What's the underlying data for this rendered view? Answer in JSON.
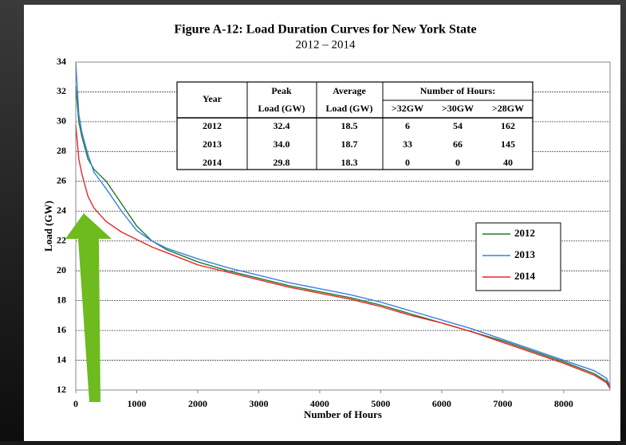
{
  "chart_data": {
    "type": "line",
    "title": "Figure A-12: Load Duration Curves for New York State",
    "subtitle": "2012 – 2014",
    "x_label": "Number of Hours",
    "y_label": "Load (GW)",
    "x": [
      0,
      50,
      100,
      200,
      300,
      500,
      750,
      1000,
      1250,
      1500,
      2000,
      2500,
      3000,
      3500,
      4000,
      4500,
      5000,
      5500,
      6000,
      6500,
      7000,
      7500,
      8000,
      8500,
      8700,
      8760
    ],
    "series": [
      {
        "name": "2012",
        "color": "#1e7a2a",
        "values": [
          32.4,
          30.0,
          29.0,
          27.5,
          26.8,
          26.0,
          24.5,
          23.0,
          22.0,
          21.4,
          20.6,
          20.0,
          19.5,
          19.0,
          18.6,
          18.2,
          17.7,
          17.1,
          16.5,
          15.9,
          15.3,
          14.6,
          13.9,
          13.1,
          12.6,
          12.2
        ]
      },
      {
        "name": "2013",
        "color": "#3a7ee8",
        "values": [
          34.0,
          30.5,
          29.3,
          27.8,
          26.6,
          25.5,
          24.0,
          22.7,
          22.0,
          21.5,
          20.8,
          20.2,
          19.7,
          19.2,
          18.8,
          18.4,
          17.9,
          17.3,
          16.7,
          16.1,
          15.4,
          14.7,
          14.0,
          13.3,
          12.8,
          12.3
        ]
      },
      {
        "name": "2014",
        "color": "#e8252a",
        "values": [
          29.8,
          27.5,
          26.5,
          25.0,
          24.2,
          23.3,
          22.6,
          22.1,
          21.6,
          21.2,
          20.4,
          19.9,
          19.4,
          18.9,
          18.5,
          18.1,
          17.6,
          17.0,
          16.5,
          15.9,
          15.2,
          14.5,
          13.8,
          13.0,
          12.5,
          12.1
        ]
      }
    ],
    "xlim": [
      0,
      8760
    ],
    "xticks": [
      0,
      1000,
      2000,
      3000,
      4000,
      5000,
      6000,
      7000,
      8000
    ],
    "ylim": [
      12,
      34
    ],
    "yticks": [
      12,
      14,
      16,
      18,
      20,
      22,
      24,
      26,
      28,
      30,
      32,
      34
    ],
    "grid": true,
    "legend": "right",
    "table": {
      "header_top": [
        "Year",
        "Peak",
        "Average",
        "Number of Hours:"
      ],
      "header_bottom": [
        "Load (GW)",
        "Load (GW)",
        ">32GW",
        ">30GW",
        ">28GW"
      ],
      "rows": [
        [
          "2012",
          "32.4",
          "18.5",
          "6",
          "54",
          "162"
        ],
        [
          "2013",
          "34.0",
          "18.7",
          "33",
          "66",
          "145"
        ],
        [
          "2014",
          "29.8",
          "18.3",
          "0",
          "0",
          "40"
        ]
      ]
    }
  }
}
